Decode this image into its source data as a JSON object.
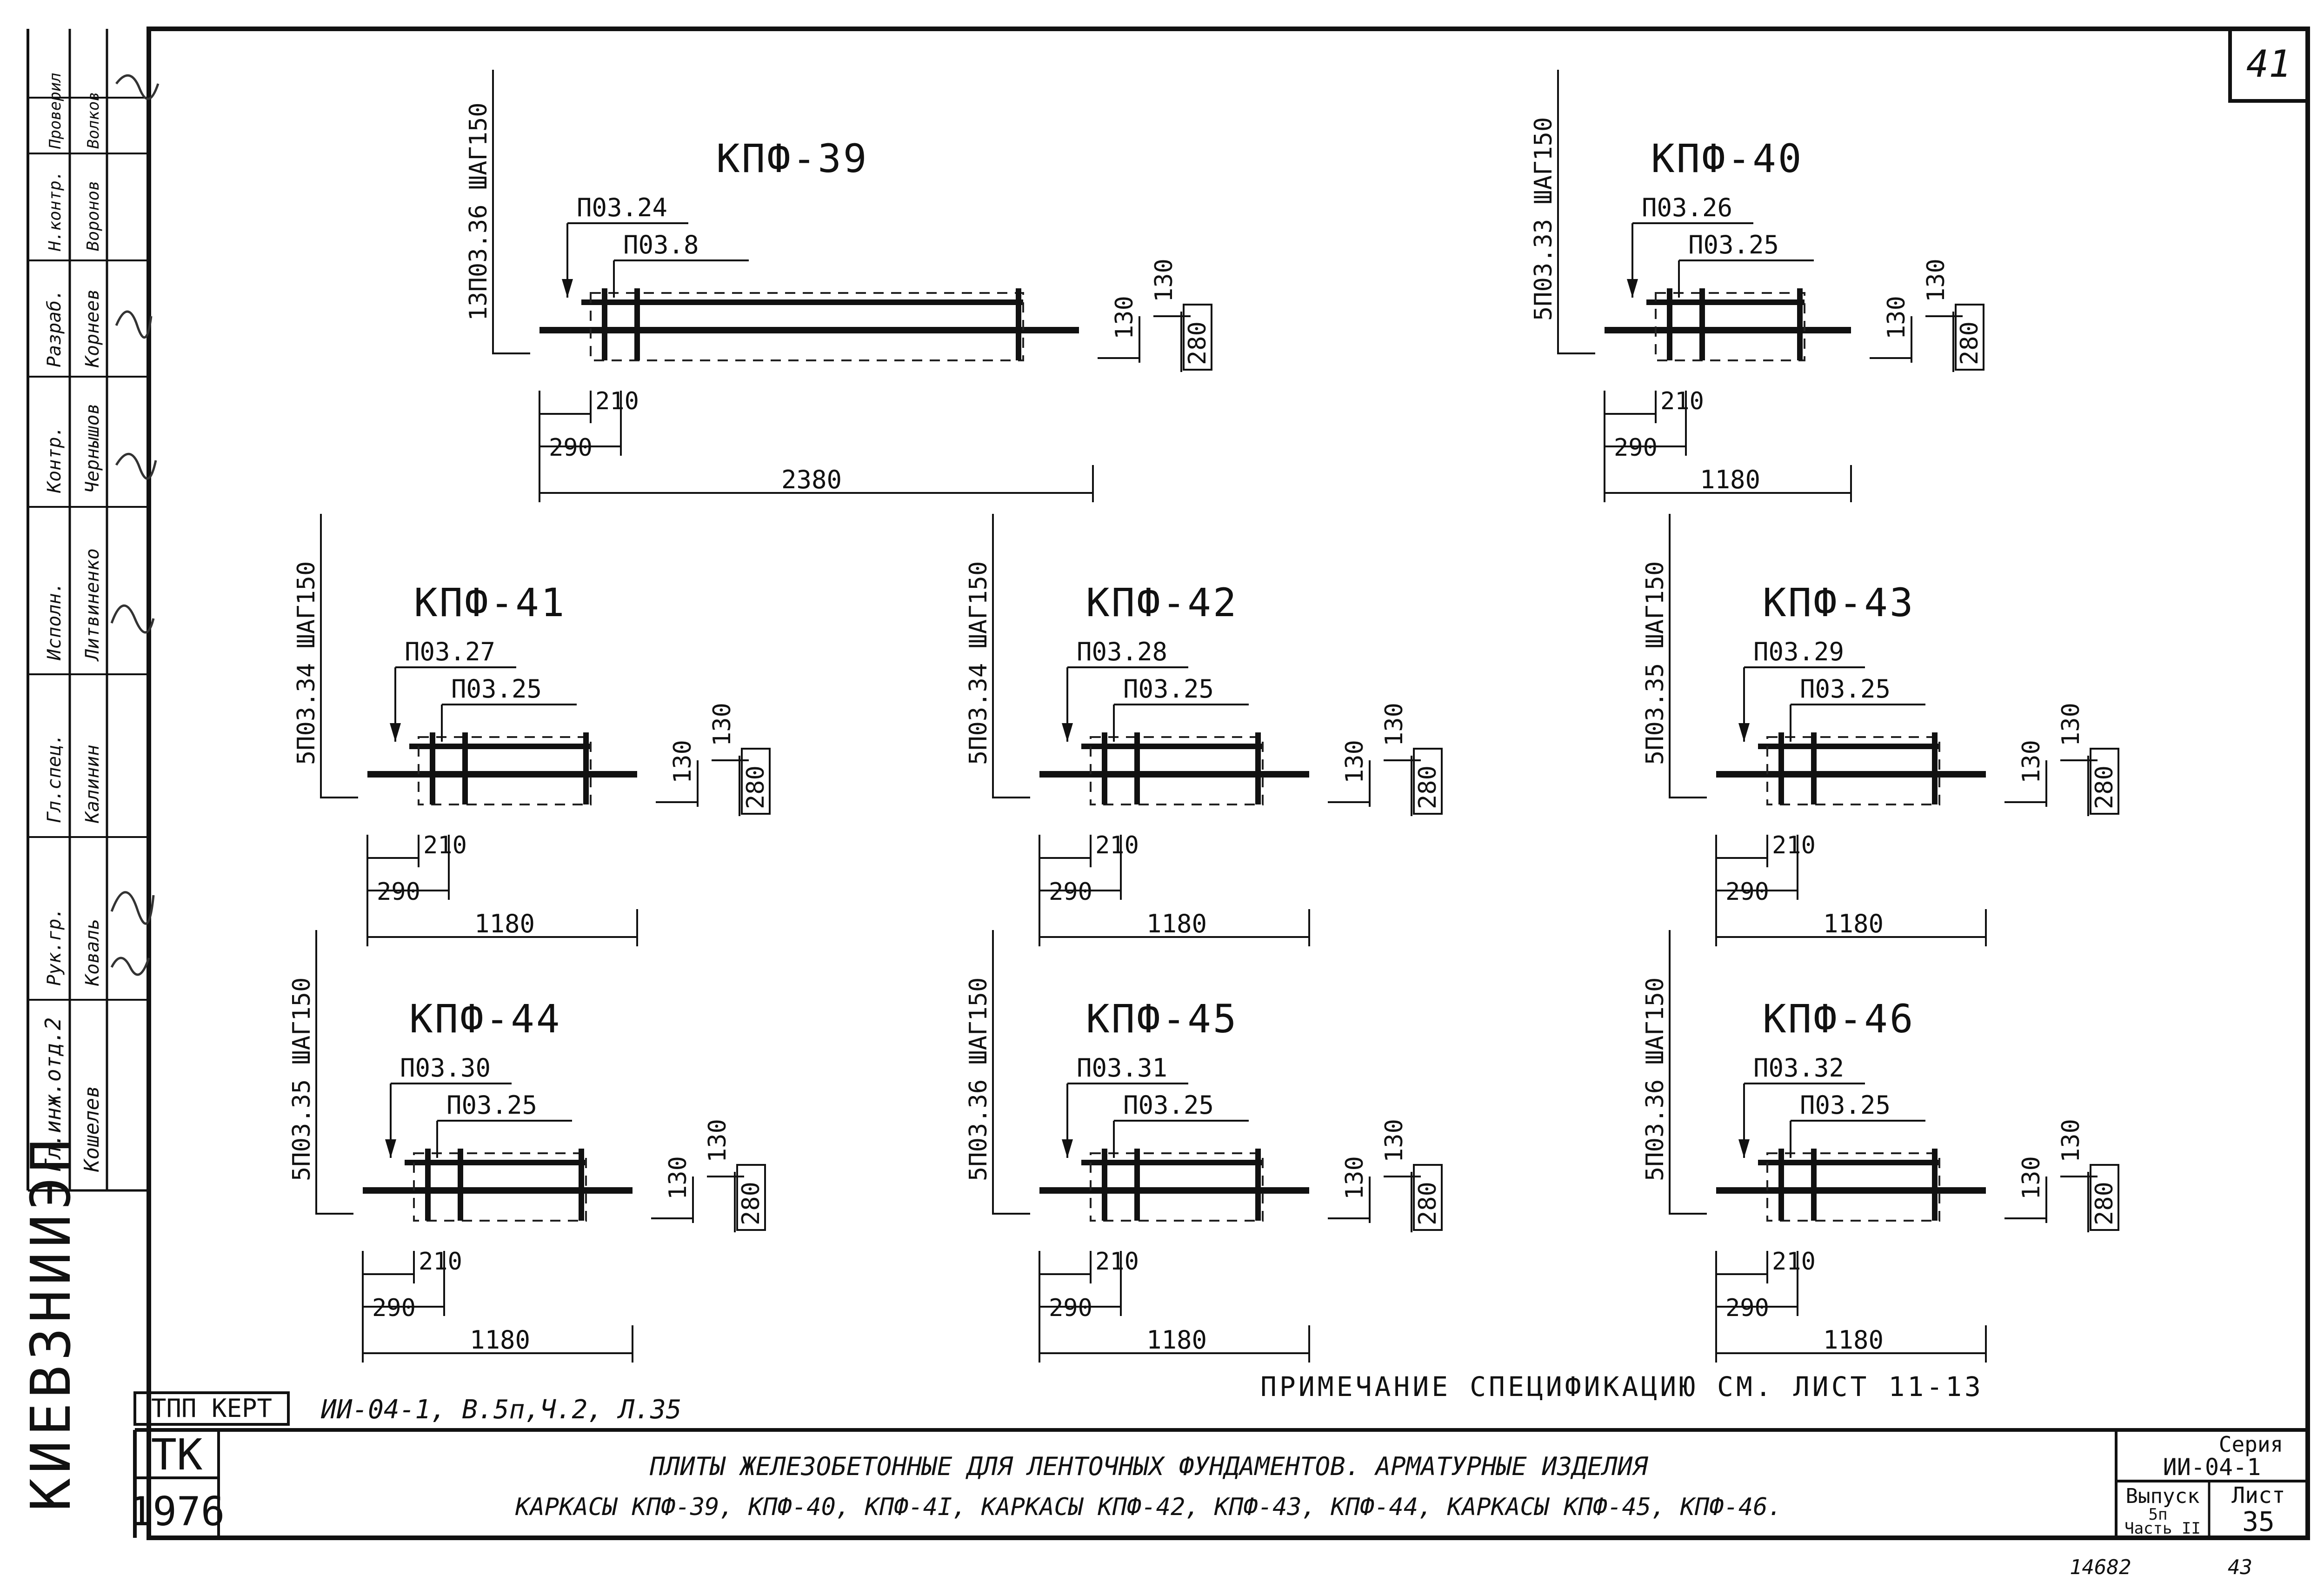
{
  "sheet": {
    "corner_number": "41",
    "bottom_handwritten_1": "14682",
    "bottom_handwritten_2": "43"
  },
  "left_strip": {
    "organization": "КИЕВЗНИИЭП",
    "roles": [
      "Гл.инж.отд.2",
      "Рук.гр.",
      "Гл.спец.",
      "Исполн.",
      "Контр.",
      "Разраб.",
      "Н.контр.",
      "Проверил"
    ],
    "names": [
      "Кошелев",
      "Коваль",
      "Калинин",
      "Литвиненко",
      "Чернышов",
      "Корнеев",
      "Воронов",
      "Волков"
    ]
  },
  "frames": [
    {
      "id": "kpf-39",
      "title": "КПФ-39",
      "main_bar": "П03.24",
      "second_bar": "П03.8",
      "vertical": "13П03.36 ШАГ150",
      "length": "2380",
      "d_210": "210",
      "d_290": "290",
      "d_130a": "130",
      "d_130b": "130",
      "d_280": "280"
    },
    {
      "id": "kpf-40",
      "title": "КПФ-40",
      "main_bar": "П03.26",
      "second_bar": "П03.25",
      "vertical": "5П03.33 ШАГ150",
      "length": "1180",
      "d_210": "210",
      "d_290": "290",
      "d_130a": "130",
      "d_130b": "130",
      "d_280": "280"
    },
    {
      "id": "kpf-41",
      "title": "КПФ-41",
      "main_bar": "П03.27",
      "second_bar": "П03.25",
      "vertical": "5П03.34 ШАГ150",
      "length": "1180",
      "d_210": "210",
      "d_290": "290",
      "d_130a": "130",
      "d_130b": "130",
      "d_280": "280"
    },
    {
      "id": "kpf-42",
      "title": "КПФ-42",
      "main_bar": "П03.28",
      "second_bar": "П03.25",
      "vertical": "5П03.34 ШАГ150",
      "length": "1180",
      "d_210": "210",
      "d_290": "290",
      "d_130a": "130",
      "d_130b": "130",
      "d_280": "280"
    },
    {
      "id": "kpf-43",
      "title": "КПФ-43",
      "main_bar": "П03.29",
      "second_bar": "П03.25",
      "vertical": "5П03.35 ШАГ150",
      "length": "1180",
      "d_210": "210",
      "d_290": "290",
      "d_130a": "130",
      "d_130b": "130",
      "d_280": "280"
    },
    {
      "id": "kpf-44",
      "title": "КПФ-44",
      "main_bar": "П03.30",
      "second_bar": "П03.25",
      "vertical": "5П03.35 ШАГ150",
      "length": "1180",
      "d_210": "210",
      "d_290": "290",
      "d_130a": "130",
      "d_130b": "130",
      "d_280": "280"
    },
    {
      "id": "kpf-45",
      "title": "КПФ-45",
      "main_bar": "П03.31",
      "second_bar": "П03.25",
      "vertical": "5П03.36 ШАГ150",
      "length": "1180",
      "d_210": "210",
      "d_290": "290",
      "d_130a": "130",
      "d_130b": "130",
      "d_280": "280"
    },
    {
      "id": "kpf-46",
      "title": "КПФ-46",
      "main_bar": "П03.32",
      "second_bar": "П03.25",
      "vertical": "5П03.36 ШАГ150",
      "length": "1180",
      "d_210": "210",
      "d_290": "290",
      "d_130a": "130",
      "d_130b": "130",
      "d_280": "280"
    }
  ],
  "note": "ПРИМЕЧАНИЕ СПЕЦИФИКАЦИЮ СМ. ЛИСТ 11-13",
  "stamp": {
    "tpp": "ТПП КЕРТ",
    "ref": "ИИ-04-1, В.5п,Ч.2, Л.35"
  },
  "title_block": {
    "tk": "ТК",
    "year": "1976",
    "line1": "ПЛИТЫ ЖЕЛЕЗОБЕТОННЫЕ ДЛЯ ЛЕНТОЧНЫХ ФУНДАМЕНТОВ. АРМАТУРНЫЕ ИЗДЕЛИЯ",
    "line2": "КАРКАСЫ КПФ-39, КПФ-40, КПФ-4I, КАРКАСЫ КПФ-42, КПФ-43, КПФ-44, КАРКАСЫ КПФ-45, КПФ-46.",
    "series_label": "Серия",
    "series_value": "ИИ-04-1",
    "issue_label": "Выпуск",
    "issue_value": "5п",
    "part_label": "Часть II",
    "sheet_label": "Лист",
    "sheet_value": "35"
  }
}
